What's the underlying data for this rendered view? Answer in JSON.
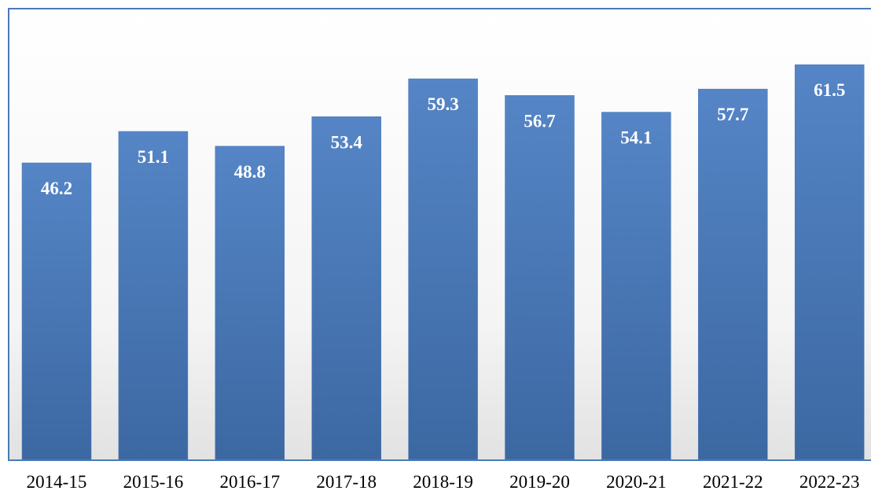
{
  "chart_data": {
    "type": "bar",
    "categories": [
      "2014-15",
      "2015-16",
      "2016-17",
      "2017-18",
      "2018-19",
      "2019-20",
      "2020-21",
      "2021-22",
      "2022-23"
    ],
    "values": [
      46.2,
      51.1,
      48.8,
      53.4,
      59.3,
      56.7,
      54.1,
      57.7,
      61.5
    ],
    "color": "#4a7ab8"
  }
}
